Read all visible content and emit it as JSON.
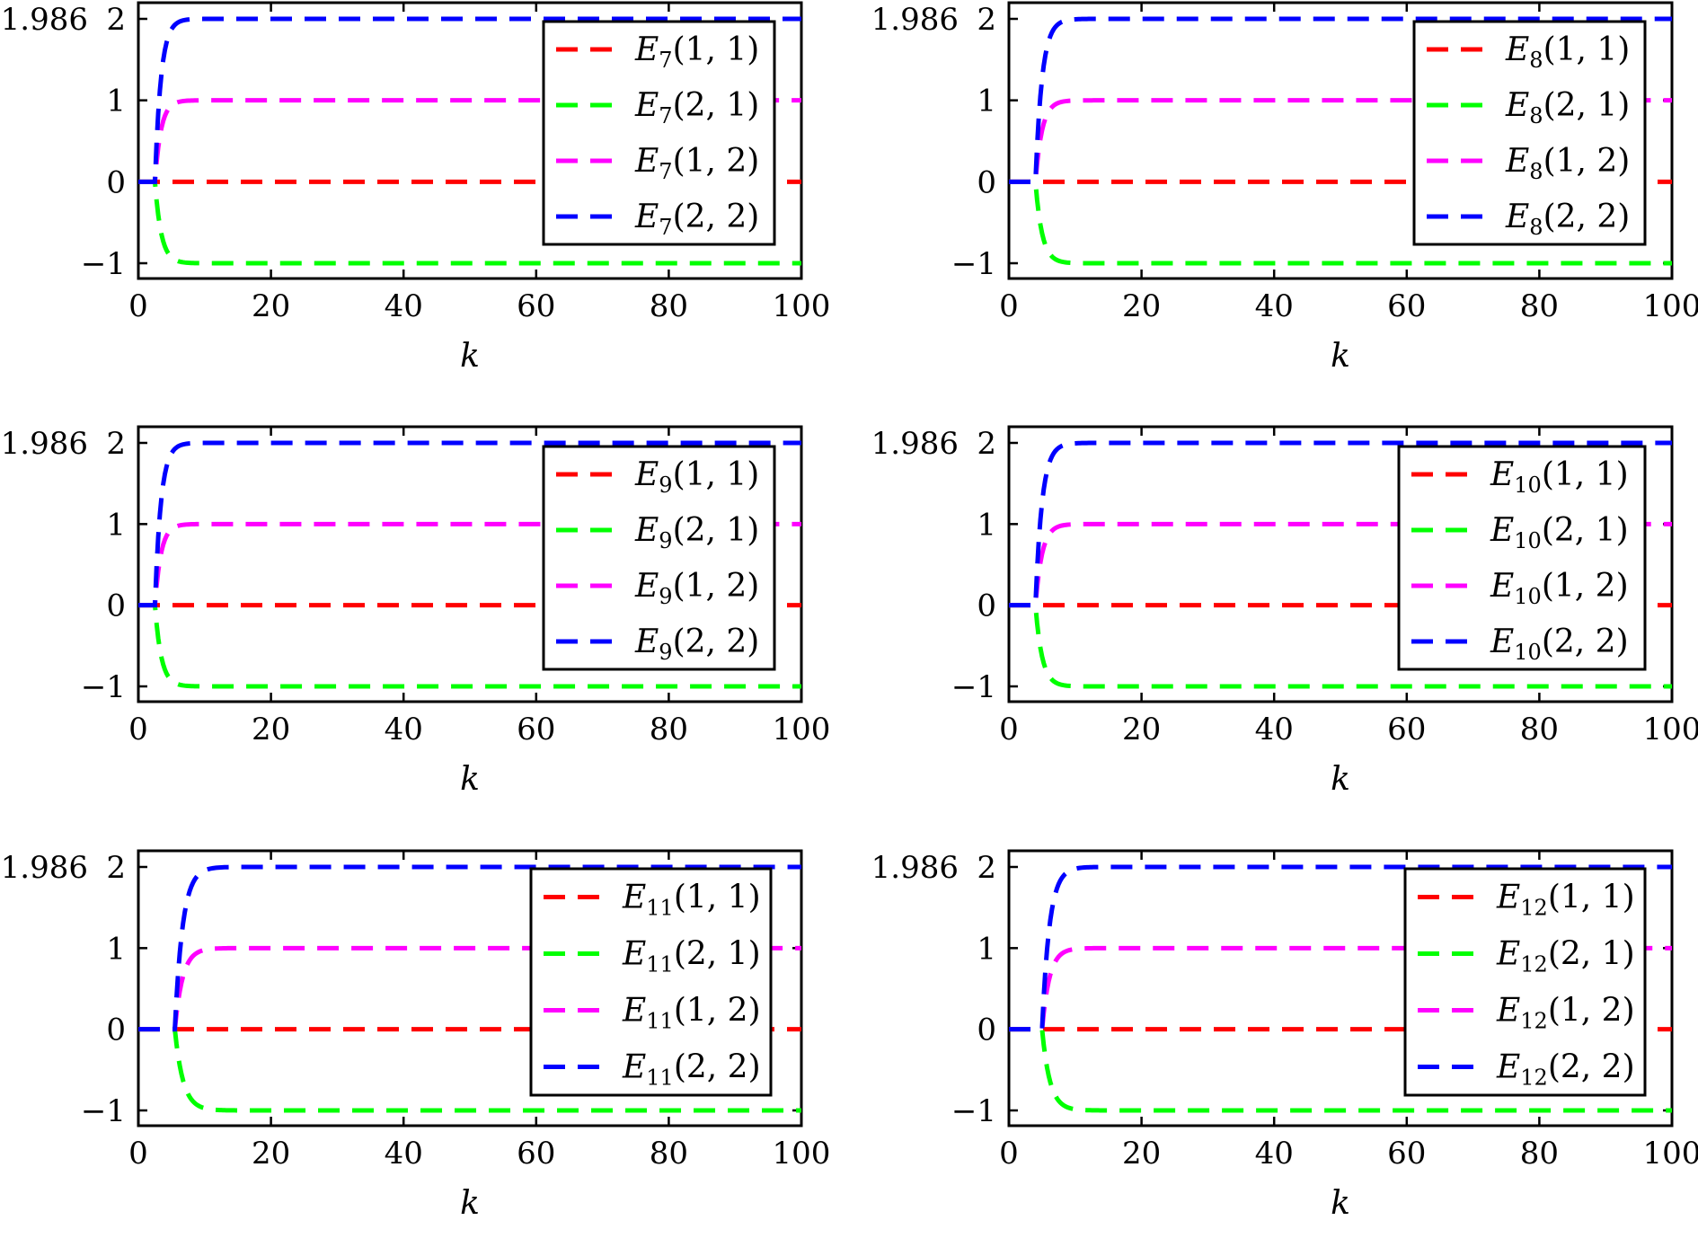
{
  "chart_data": [
    {
      "type": "line",
      "title": "",
      "xlabel": "k",
      "ylabel": "",
      "xlim": [
        0,
        100
      ],
      "ylim": [
        -1.2,
        2.1
      ],
      "xticks": [
        0,
        20,
        40,
        60,
        80,
        100
      ],
      "xtick_labels": [
        "0",
        "20",
        "40",
        "60",
        "80",
        "100"
      ],
      "yticks": [
        -1,
        0,
        1,
        2
      ],
      "ytick_labels": [
        "−1",
        "0",
        "1",
        "2"
      ],
      "top_annotation": "1.986",
      "grid": false,
      "legend_position": "top-right",
      "series": [
        {
          "symbol": "E",
          "subscript": "7",
          "args": "(1, 1)",
          "color": "#ff0000",
          "start_k": 2.5,
          "final": 0,
          "rate": 1
        },
        {
          "symbol": "E",
          "subscript": "7",
          "args": "(2, 1)",
          "color": "#00ff00",
          "start_k": 2.5,
          "final": -1,
          "rate": 1.05
        },
        {
          "symbol": "E",
          "subscript": "7",
          "args": "(1, 2)",
          "color": "#ff00ff",
          "start_k": 2.5,
          "final": 1,
          "rate": 1.1
        },
        {
          "symbol": "E",
          "subscript": "7",
          "args": "(2, 2)",
          "color": "#0000ff",
          "start_k": 2.5,
          "final": 2,
          "rate": 1.1
        }
      ]
    },
    {
      "type": "line",
      "title": "",
      "xlabel": "k",
      "ylabel": "",
      "xlim": [
        0,
        100
      ],
      "ylim": [
        -1.2,
        2.1
      ],
      "xticks": [
        0,
        20,
        40,
        60,
        80,
        100
      ],
      "xtick_labels": [
        "0",
        "20",
        "40",
        "60",
        "80",
        "100"
      ],
      "yticks": [
        -1,
        0,
        1,
        2
      ],
      "ytick_labels": [
        "−1",
        "0",
        "1",
        "2"
      ],
      "top_annotation": "1.986",
      "grid": false,
      "legend_position": "top-right",
      "series": [
        {
          "symbol": "E",
          "subscript": "8",
          "args": "(1, 1)",
          "color": "#ff0000",
          "start_k": 4,
          "final": 0,
          "rate": 1
        },
        {
          "symbol": "E",
          "subscript": "8",
          "args": "(2, 1)",
          "color": "#00ff00",
          "start_k": 4,
          "final": -1,
          "rate": 1
        },
        {
          "symbol": "E",
          "subscript": "8",
          "args": "(1, 2)",
          "color": "#ff00ff",
          "start_k": 4,
          "final": 1,
          "rate": 1
        },
        {
          "symbol": "E",
          "subscript": "8",
          "args": "(2, 2)",
          "color": "#0000ff",
          "start_k": 4,
          "final": 2,
          "rate": 1
        }
      ]
    },
    {
      "type": "line",
      "title": "",
      "xlabel": "k",
      "ylabel": "",
      "xlim": [
        0,
        100
      ],
      "ylim": [
        -1.2,
        2.1
      ],
      "xticks": [
        0,
        20,
        40,
        60,
        80,
        100
      ],
      "xtick_labels": [
        "0",
        "20",
        "40",
        "60",
        "80",
        "100"
      ],
      "yticks": [
        -1,
        0,
        1,
        2
      ],
      "ytick_labels": [
        "−1",
        "0",
        "1",
        "2"
      ],
      "top_annotation": "1.986",
      "grid": false,
      "legend_position": "top-right",
      "series": [
        {
          "symbol": "E",
          "subscript": "9",
          "args": "(1, 1)",
          "color": "#ff0000",
          "start_k": 2.5,
          "final": 0,
          "rate": 1
        },
        {
          "symbol": "E",
          "subscript": "9",
          "args": "(2, 1)",
          "color": "#00ff00",
          "start_k": 2.5,
          "final": -1,
          "rate": 1.05
        },
        {
          "symbol": "E",
          "subscript": "9",
          "args": "(1, 2)",
          "color": "#ff00ff",
          "start_k": 2.5,
          "final": 1,
          "rate": 1.1
        },
        {
          "symbol": "E",
          "subscript": "9",
          "args": "(2, 2)",
          "color": "#0000ff",
          "start_k": 2.5,
          "final": 2,
          "rate": 1.1
        }
      ]
    },
    {
      "type": "line",
      "title": "",
      "xlabel": "k",
      "ylabel": "",
      "xlim": [
        0,
        100
      ],
      "ylim": [
        -1.2,
        2.1
      ],
      "xticks": [
        0,
        20,
        40,
        60,
        80,
        100
      ],
      "xtick_labels": [
        "0",
        "20",
        "40",
        "60",
        "80",
        "100"
      ],
      "yticks": [
        -1,
        0,
        1,
        2
      ],
      "ytick_labels": [
        "−1",
        "0",
        "1",
        "2"
      ],
      "top_annotation": "1.986",
      "grid": false,
      "legend_position": "top-right",
      "series": [
        {
          "symbol": "E",
          "subscript": "10",
          "args": "(1, 1)",
          "color": "#ff0000",
          "start_k": 4,
          "final": 0,
          "rate": 1
        },
        {
          "symbol": "E",
          "subscript": "10",
          "args": "(2, 1)",
          "color": "#00ff00",
          "start_k": 4,
          "final": -1,
          "rate": 1
        },
        {
          "symbol": "E",
          "subscript": "10",
          "args": "(1, 2)",
          "color": "#ff00ff",
          "start_k": 4,
          "final": 1,
          "rate": 1
        },
        {
          "symbol": "E",
          "subscript": "10",
          "args": "(2, 2)",
          "color": "#0000ff",
          "start_k": 4,
          "final": 2,
          "rate": 1
        }
      ]
    },
    {
      "type": "line",
      "title": "",
      "xlabel": "k",
      "ylabel": "",
      "xlim": [
        0,
        100
      ],
      "ylim": [
        -1.2,
        2.1
      ],
      "xticks": [
        0,
        20,
        40,
        60,
        80,
        100
      ],
      "xtick_labels": [
        "0",
        "20",
        "40",
        "60",
        "80",
        "100"
      ],
      "yticks": [
        -1,
        0,
        1,
        2
      ],
      "ytick_labels": [
        "−1",
        "0",
        "1",
        "2"
      ],
      "top_annotation": "1.986",
      "grid": false,
      "legend_position": "top-right",
      "series": [
        {
          "symbol": "E",
          "subscript": "11",
          "args": "(1, 1)",
          "color": "#ff0000",
          "start_k": 5.5,
          "final": 0,
          "rate": 0.8
        },
        {
          "symbol": "E",
          "subscript": "11",
          "args": "(2, 1)",
          "color": "#00ff00",
          "start_k": 5.5,
          "final": -1,
          "rate": 0.8
        },
        {
          "symbol": "E",
          "subscript": "11",
          "args": "(1, 2)",
          "color": "#ff00ff",
          "start_k": 5.5,
          "final": 1,
          "rate": 0.85
        },
        {
          "symbol": "E",
          "subscript": "11",
          "args": "(2, 2)",
          "color": "#0000ff",
          "start_k": 5.5,
          "final": 2,
          "rate": 0.85
        }
      ]
    },
    {
      "type": "line",
      "title": "",
      "xlabel": "k",
      "ylabel": "",
      "xlim": [
        0,
        100
      ],
      "ylim": [
        -1.2,
        2.1
      ],
      "xticks": [
        0,
        20,
        40,
        60,
        80,
        100
      ],
      "xtick_labels": [
        "0",
        "20",
        "40",
        "60",
        "80",
        "100"
      ],
      "yticks": [
        -1,
        0,
        1,
        2
      ],
      "ytick_labels": [
        "−1",
        "0",
        "1",
        "2"
      ],
      "top_annotation": "1.986",
      "grid": false,
      "legend_position": "top-right",
      "series": [
        {
          "symbol": "E",
          "subscript": "12",
          "args": "(1, 1)",
          "color": "#ff0000",
          "start_k": 5,
          "final": 0,
          "rate": 0.85
        },
        {
          "symbol": "E",
          "subscript": "12",
          "args": "(2, 1)",
          "color": "#00ff00",
          "start_k": 5,
          "final": -1,
          "rate": 0.85
        },
        {
          "symbol": "E",
          "subscript": "12",
          "args": "(1, 2)",
          "color": "#ff00ff",
          "start_k": 5,
          "final": 1,
          "rate": 0.9
        },
        {
          "symbol": "E",
          "subscript": "12",
          "args": "(2, 2)",
          "color": "#0000ff",
          "start_k": 5,
          "final": 2,
          "rate": 0.9
        }
      ]
    }
  ]
}
